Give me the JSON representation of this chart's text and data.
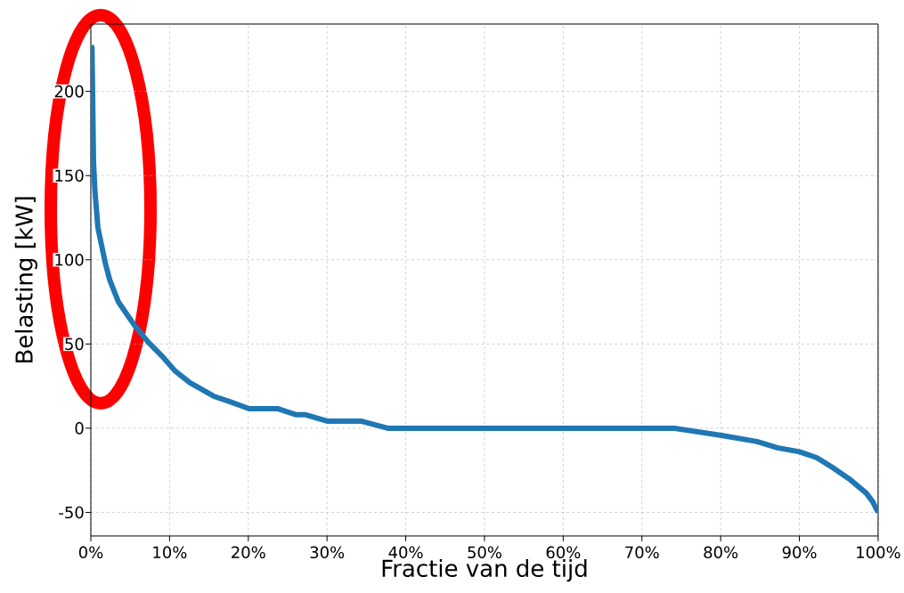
{
  "chart_data": {
    "type": "line",
    "xlabel": "Fractie van de tijd",
    "ylabel": "Belasting [kW]",
    "x": [
      0,
      0.15,
      0.34,
      0.53,
      0.9,
      1.84,
      2.4,
      3.5,
      5.4,
      7.3,
      9.2,
      10.7,
      12.6,
      14.1,
      15.6,
      17.5,
      20.1,
      23.7,
      26.1,
      27.3,
      30,
      34.3,
      37.7,
      74.1,
      80.1,
      84.6,
      87.2,
      90,
      92.2,
      94,
      96.3,
      98.5,
      99.3,
      100
    ],
    "series": [
      {
        "color": "#1f77b4",
        "values": [
          227,
          226,
          158,
          140,
          119,
          98,
          88,
          75,
          62,
          51,
          42,
          34,
          27,
          23,
          19,
          16,
          11.6,
          11.6,
          8,
          8,
          4.2,
          4.2,
          0,
          0,
          -4.3,
          -7.9,
          -11.6,
          -14,
          -17.5,
          -22.7,
          -30,
          -38.6,
          -43.6,
          -50
        ]
      }
    ],
    "xlim": [
      0,
      100
    ],
    "ylim": [
      -64,
      240
    ],
    "xticks": [
      {
        "value": 0,
        "label": "0%"
      },
      {
        "value": 10,
        "label": "10%"
      },
      {
        "value": 20,
        "label": "20%"
      },
      {
        "value": 30,
        "label": "30%"
      },
      {
        "value": 40,
        "label": "40%"
      },
      {
        "value": 50,
        "label": "50%"
      },
      {
        "value": 60,
        "label": "60%"
      },
      {
        "value": 70,
        "label": "70%"
      },
      {
        "value": 80,
        "label": "80%"
      },
      {
        "value": 90,
        "label": "90%"
      },
      {
        "value": 100,
        "label": "100%"
      }
    ],
    "yticks": [
      -50,
      0,
      50,
      100,
      150,
      200
    ],
    "grid": true,
    "line_style": "solid",
    "marker": "none"
  }
}
